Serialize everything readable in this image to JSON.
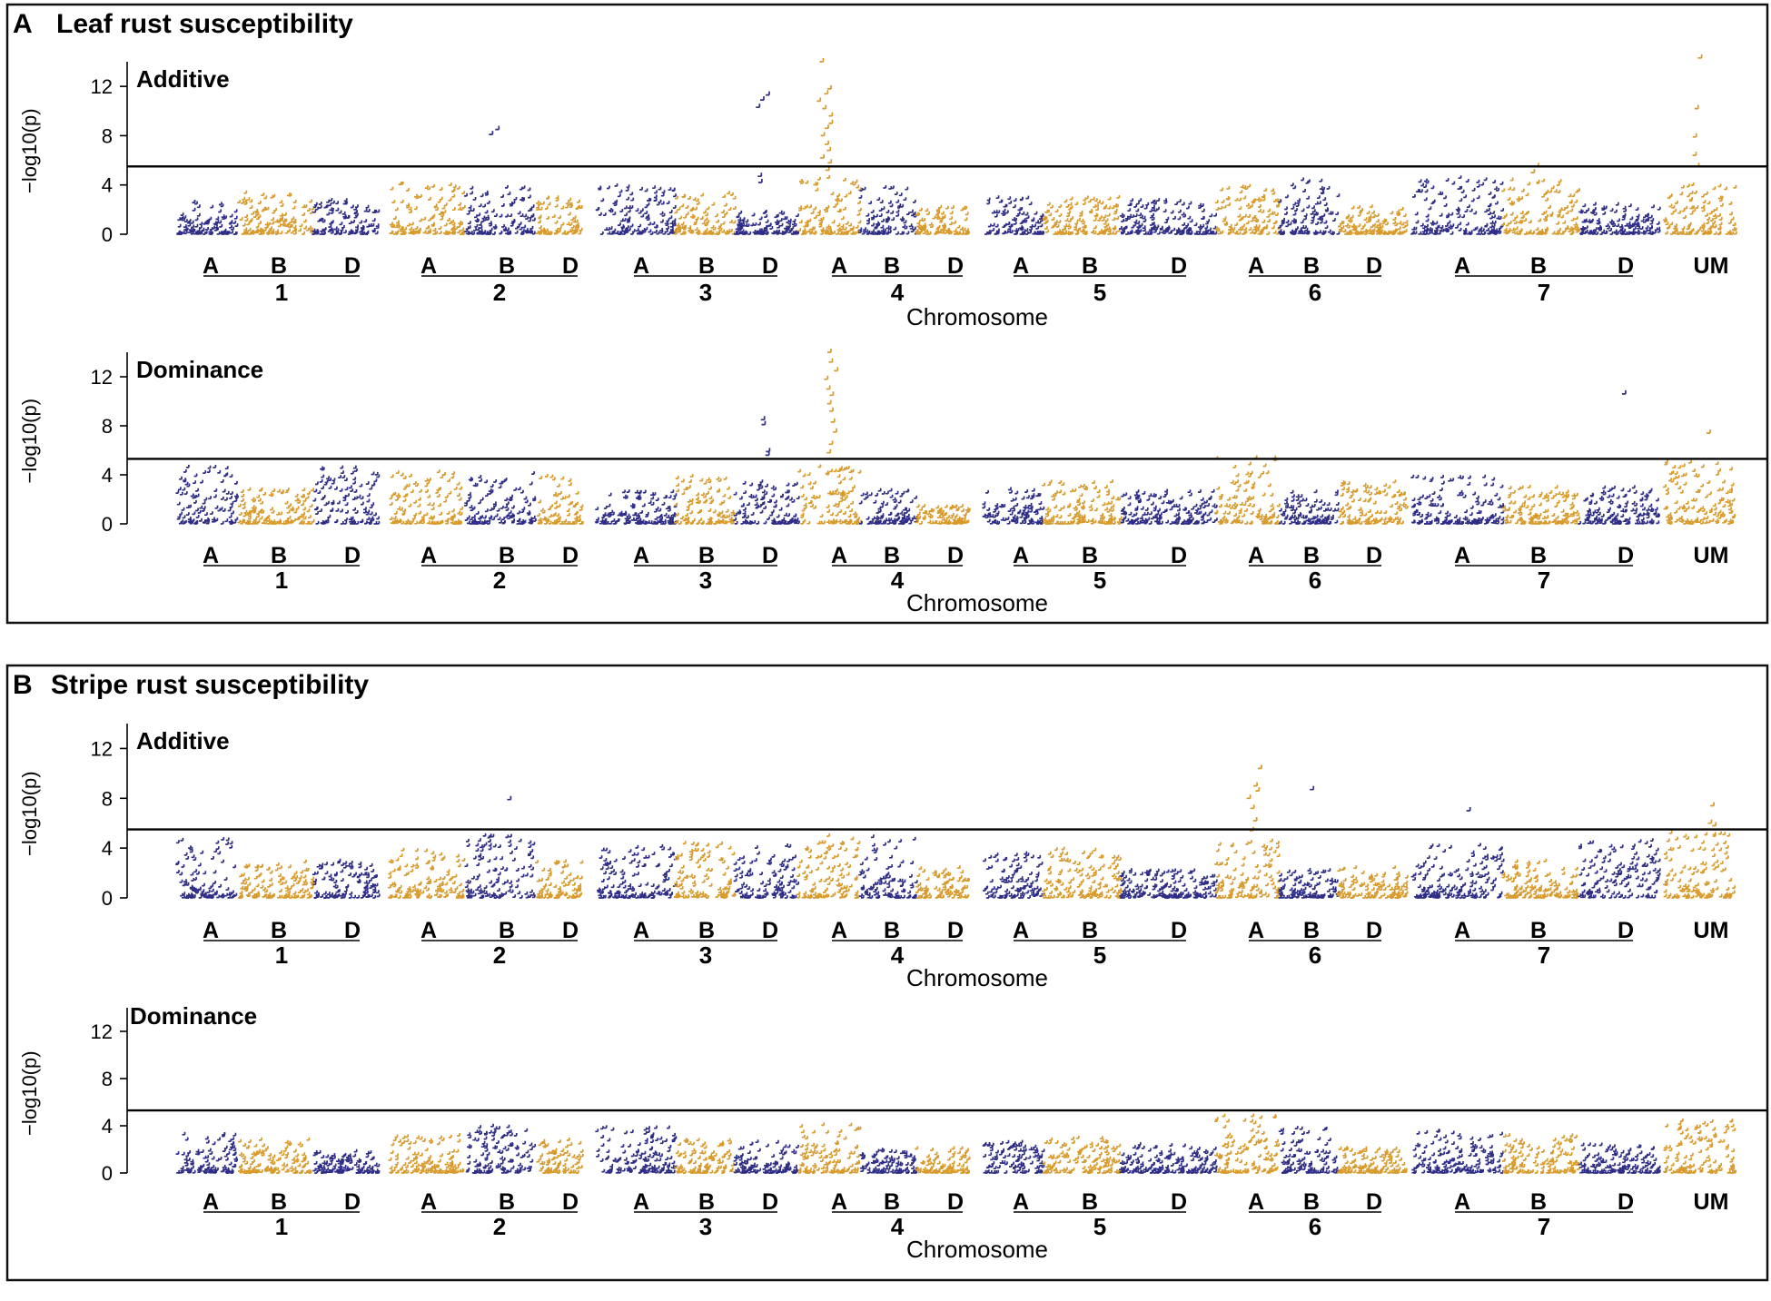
{
  "figure": {
    "panels": [
      {
        "letter": "A",
        "title": "Leaf rust susceptibility"
      },
      {
        "letter": "B",
        "title": "Stripe rust susceptibility"
      }
    ]
  },
  "colors": {
    "series_odd": "#2e2d86",
    "series_even": "#d89a2b",
    "threshold": "#000000"
  },
  "chart_data": [
    {
      "type": "scatter",
      "subtype": "manhattan",
      "panel": "A",
      "title": "Additive",
      "ylabel": "−log10(p)",
      "xlabel": "Chromosome",
      "yticks": [
        0,
        4,
        8,
        12
      ],
      "ylim": [
        0,
        14
      ],
      "threshold": 5.5,
      "segments": [
        "1A",
        "1B",
        "1D",
        "2A",
        "2B",
        "2D",
        "3A",
        "3B",
        "3D",
        "4A",
        "4B",
        "4D",
        "5A",
        "5B",
        "5D",
        "6A",
        "6B",
        "6D",
        "7A",
        "7B",
        "7D",
        "UM"
      ],
      "baseline_max": [
        2.6,
        3.4,
        2.8,
        4.1,
        3.8,
        3.0,
        4.0,
        3.6,
        1.8,
        4.6,
        3.8,
        2.2,
        3.0,
        3.0,
        2.8,
        4.1,
        4.4,
        2.2,
        4.6,
        4.4,
        2.4,
        4.0
      ],
      "peaks": [
        {
          "segment": "2B",
          "values": [
            8.5,
            8.1
          ]
        },
        {
          "segment": "3D",
          "values": [
            11.3,
            10.9,
            10.3,
            4.7,
            4.2
          ]
        },
        {
          "segment": "4A",
          "values": [
            14.0,
            11.8,
            11.4,
            10.8,
            10.2,
            9.6,
            9.0,
            8.6,
            8.0,
            7.3,
            6.8,
            6.2,
            5.8,
            5.2
          ]
        },
        {
          "segment": "7B",
          "values": [
            5.5,
            5.0
          ]
        },
        {
          "segment": "UM",
          "values": [
            14.3,
            10.2,
            7.9,
            6.4,
            5.5
          ]
        }
      ]
    },
    {
      "type": "scatter",
      "subtype": "manhattan",
      "panel": "A",
      "title": "Dominance",
      "ylabel": "−log10(p)",
      "xlabel": "Chromosome",
      "yticks": [
        0,
        4,
        8,
        12
      ],
      "ylim": [
        0,
        14
      ],
      "threshold": 5.3,
      "segments": [
        "1A",
        "1B",
        "1D",
        "2A",
        "2B",
        "2D",
        "3A",
        "3B",
        "3D",
        "4A",
        "4B",
        "4D",
        "5A",
        "5B",
        "5D",
        "6A",
        "6B",
        "6D",
        "7A",
        "7B",
        "7D",
        "UM"
      ],
      "baseline_max": [
        4.8,
        2.8,
        4.6,
        4.2,
        4.1,
        4.0,
        2.6,
        4.0,
        3.4,
        4.8,
        2.8,
        1.4,
        2.8,
        3.4,
        2.8,
        5.5,
        2.6,
        3.6,
        3.8,
        3.0,
        3.0,
        5.0
      ],
      "peaks": [
        {
          "segment": "3D",
          "values": [
            8.5,
            8.1,
            5.9,
            5.6
          ]
        },
        {
          "segment": "4A",
          "values": [
            14.0,
            13.2,
            12.5,
            11.8,
            11.0,
            10.5,
            9.8,
            9.2,
            8.3,
            7.5,
            6.5,
            5.8
          ]
        },
        {
          "segment": "7D",
          "values": [
            10.6
          ]
        },
        {
          "segment": "UM",
          "values": [
            7.4
          ]
        }
      ]
    },
    {
      "type": "scatter",
      "subtype": "manhattan",
      "panel": "B",
      "title": "Additive",
      "ylabel": "−log10(p)",
      "xlabel": "Chromosome",
      "yticks": [
        0,
        4,
        8,
        12
      ],
      "ylim": [
        0,
        14
      ],
      "threshold": 5.5,
      "segments": [
        "1A",
        "1B",
        "1D",
        "2A",
        "2B",
        "2D",
        "3A",
        "3B",
        "3D",
        "4A",
        "4B",
        "4D",
        "5A",
        "5B",
        "5D",
        "6A",
        "6B",
        "6D",
        "7A",
        "7B",
        "7D",
        "UM"
      ],
      "baseline_max": [
        4.7,
        2.9,
        3.0,
        4.0,
        5.0,
        3.0,
        4.1,
        4.4,
        4.2,
        5.0,
        5.0,
        2.4,
        3.6,
        4.0,
        2.2,
        4.6,
        2.2,
        2.4,
        4.2,
        3.0,
        4.6,
        5.2
      ],
      "peaks": [
        {
          "segment": "2B",
          "values": [
            7.9
          ]
        },
        {
          "segment": "6A",
          "values": [
            10.4,
            9.0,
            8.6,
            8.0,
            7.2,
            6.2,
            5.4
          ]
        },
        {
          "segment": "6B",
          "values": [
            8.7
          ]
        },
        {
          "segment": "7A",
          "values": [
            7.0
          ]
        },
        {
          "segment": "UM",
          "values": [
            7.4,
            6.0,
            5.8
          ]
        }
      ]
    },
    {
      "type": "scatter",
      "subtype": "manhattan",
      "panel": "B",
      "title": "Dominance",
      "ylabel": "−log10(p)",
      "xlabel": "Chromosome",
      "yticks": [
        0,
        4,
        8,
        12
      ],
      "ylim": [
        0,
        14
      ],
      "threshold": 5.3,
      "segments": [
        "1A",
        "1B",
        "1D",
        "2A",
        "2B",
        "2D",
        "3A",
        "3B",
        "3D",
        "4A",
        "4B",
        "4D",
        "5A",
        "5B",
        "5D",
        "6A",
        "6B",
        "6D",
        "7A",
        "7B",
        "7D",
        "UM"
      ],
      "baseline_max": [
        3.4,
        2.8,
        1.8,
        3.2,
        4.0,
        2.8,
        4.0,
        2.8,
        2.6,
        4.2,
        2.0,
        2.2,
        2.6,
        3.0,
        2.4,
        4.8,
        4.0,
        2.2,
        3.6,
        3.2,
        2.4,
        4.4
      ],
      "peaks": []
    }
  ],
  "axis_labels": {
    "genomes": [
      "A",
      "B",
      "D",
      "A",
      "B",
      "D",
      "A",
      "B",
      "D",
      "A",
      "B",
      "D",
      "A",
      "B",
      "D",
      "A",
      "B",
      "D",
      "A",
      "B",
      "D",
      "UM"
    ],
    "chromosomes": [
      "1",
      "2",
      "3",
      "4",
      "5",
      "6",
      "7"
    ]
  }
}
